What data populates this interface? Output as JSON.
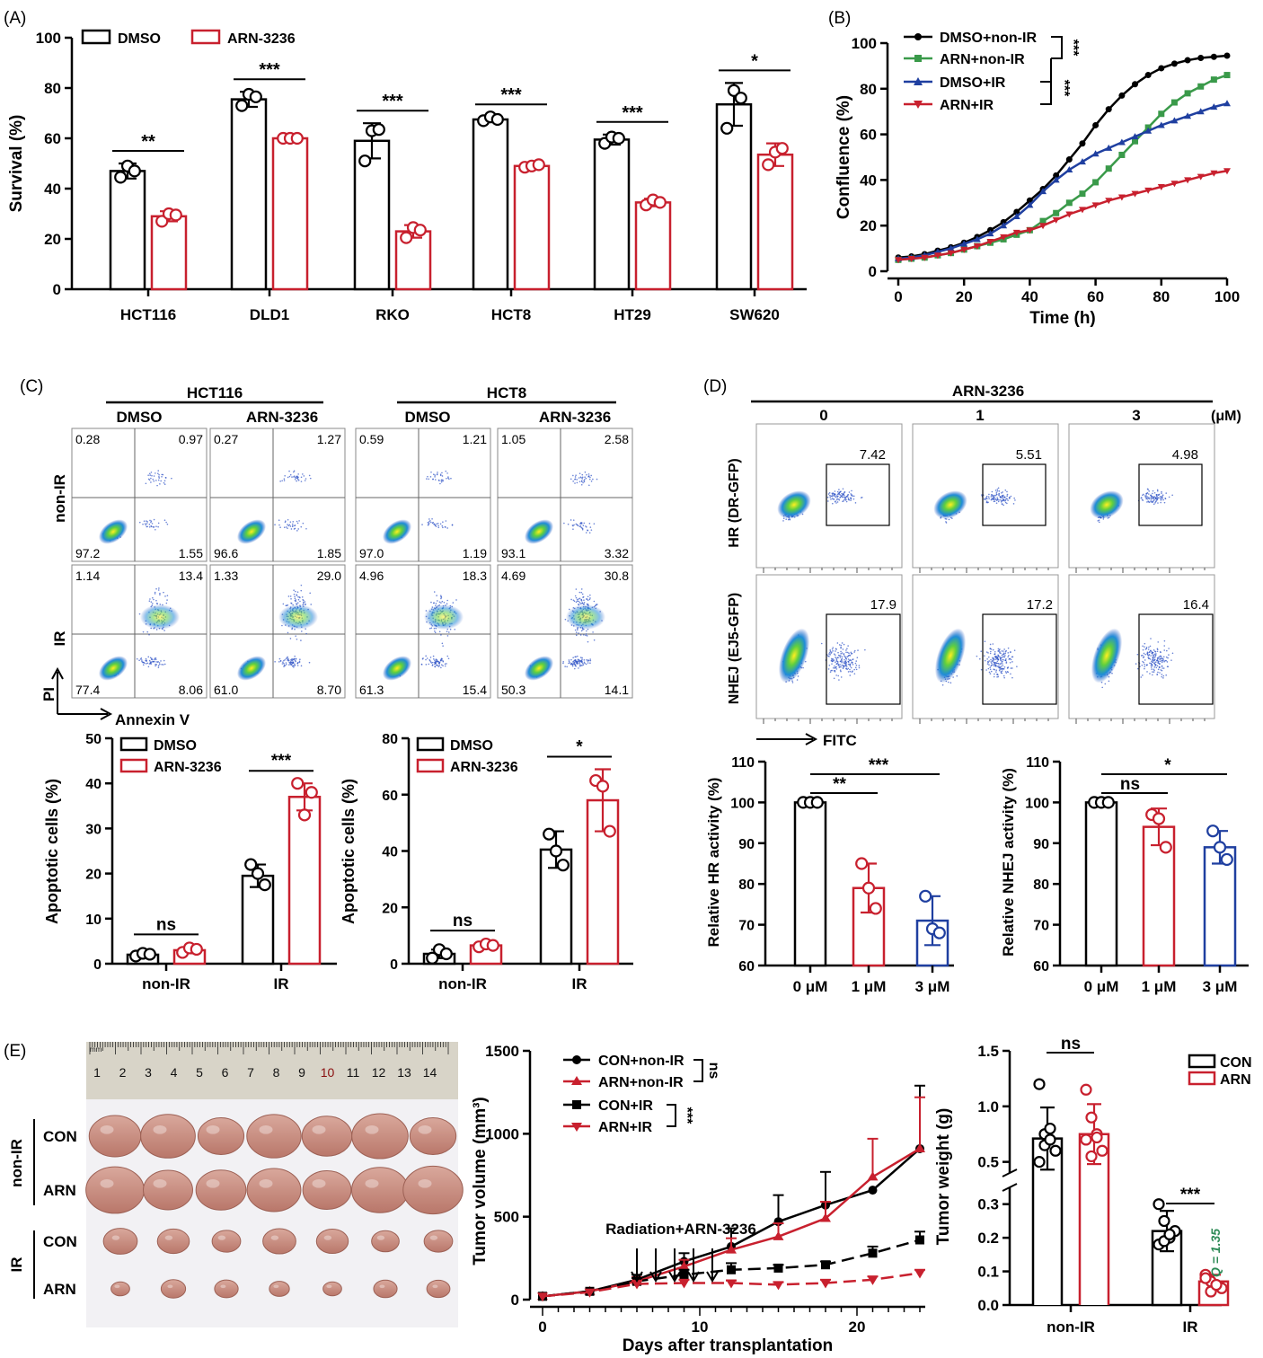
{
  "colors": {
    "dmso": "#000000",
    "arn": "#c8202e",
    "blue": "#1f3fa0",
    "green": "#3a9a4a",
    "q_green": "#2e8b57"
  },
  "panelA": {
    "label": "(A)",
    "chart_data": {
      "type": "bar",
      "ylabel": "Survival (%)",
      "ylim": [
        0,
        100
      ],
      "yticks": [
        0,
        20,
        40,
        60,
        80,
        100
      ],
      "categories": [
        "HCT116",
        "DLD1",
        "RKO",
        "HCT8",
        "HT29",
        "SW620"
      ],
      "series": [
        {
          "name": "DMSO",
          "values": [
            47,
            75.5,
            59,
            67.5,
            59.5,
            73.5
          ],
          "errors": [
            3,
            3,
            7,
            1,
            2,
            8.5
          ],
          "points": [
            [
              44.5,
              49,
              47
            ],
            [
              73,
              77.5,
              76.5
            ],
            [
              51,
              63,
              63.5
            ],
            [
              67,
              68.5,
              67.5
            ],
            [
              58,
              60.5,
              60
            ],
            [
              64,
              79,
              76
            ]
          ]
        },
        {
          "name": "ARN-3236",
          "values": [
            29,
            60,
            23,
            49,
            34.5,
            53.5
          ],
          "errors": [
            2,
            0.5,
            2.5,
            1,
            1.5,
            4.5
          ],
          "points": [
            [
              27,
              30,
              29.5
            ],
            [
              60,
              60,
              60
            ],
            [
              20.5,
              24.5,
              23.5
            ],
            [
              48.5,
              49,
              49.5
            ],
            [
              33.5,
              35.5,
              34.5
            ],
            [
              49.5,
              54.5,
              56
            ]
          ]
        }
      ],
      "sig": [
        "**",
        "***",
        "***",
        "***",
        "***",
        "*"
      ]
    }
  },
  "panelB": {
    "label": "(B)",
    "chart_data": {
      "type": "line",
      "xlabel": "Time (h)",
      "ylabel": "Confluence (%)",
      "xlim": [
        0,
        100
      ],
      "ylim": [
        0,
        100
      ],
      "xticks": [
        0,
        20,
        40,
        60,
        80,
        100
      ],
      "yticks": [
        0,
        20,
        40,
        60,
        80,
        100
      ],
      "x": [
        0,
        4,
        8,
        12,
        16,
        20,
        24,
        28,
        32,
        36,
        40,
        44,
        48,
        52,
        56,
        60,
        64,
        68,
        72,
        76,
        80,
        84,
        88,
        92,
        96,
        100
      ],
      "series": [
        {
          "name": "DMSO+non-IR",
          "values": [
            6,
            6.5,
            7.5,
            9,
            10.5,
            12.5,
            15,
            18,
            21.5,
            26,
            31,
            36,
            42,
            49,
            56,
            64,
            71,
            77,
            82,
            86,
            89,
            91,
            92.5,
            93.5,
            94,
            94.5
          ]
        },
        {
          "name": "ARN+non-IR",
          "values": [
            5,
            5.5,
            6,
            7,
            8,
            9.5,
            11,
            12.5,
            14,
            16,
            18,
            22,
            25.5,
            30,
            34,
            39,
            45,
            51,
            57,
            63,
            69,
            74,
            78,
            81,
            84,
            86
          ]
        },
        {
          "name": "DMSO+IR",
          "values": [
            5.5,
            6,
            7,
            8.5,
            10,
            12,
            14,
            16.5,
            20,
            24,
            29,
            35,
            40,
            44.5,
            48,
            51.5,
            54,
            56.5,
            59,
            61.5,
            64,
            66,
            68,
            70,
            72,
            73.5
          ]
        },
        {
          "name": "ARN+IR",
          "values": [
            5,
            5.5,
            6,
            7,
            8,
            9.5,
            11,
            13,
            15,
            17,
            18,
            20,
            22.5,
            25,
            27,
            29,
            31,
            32.5,
            34,
            35.5,
            37,
            38.5,
            40,
            41.5,
            43,
            44
          ]
        }
      ],
      "sig": [
        "***",
        "***"
      ]
    }
  },
  "panelC": {
    "label": "(C)",
    "groups": [
      "HCT116",
      "HCT8"
    ],
    "conds": [
      "DMSO",
      "ARN-3236",
      "DMSO",
      "ARN-3236"
    ],
    "rows": [
      "non-IR",
      "IR"
    ],
    "ylab": "PI",
    "xlab": "Annexin V",
    "quads": [
      [
        [
          "0.28",
          "0.97",
          "97.2",
          "1.55"
        ],
        [
          "0.27",
          "1.27",
          "96.6",
          "1.85"
        ],
        [
          "0.59",
          "1.21",
          "97.0",
          "1.19"
        ],
        [
          "1.05",
          "2.58",
          "93.1",
          "3.32"
        ]
      ],
      [
        [
          "1.14",
          "13.4",
          "77.4",
          "8.06"
        ],
        [
          "1.33",
          "29.0",
          "61.0",
          "8.70"
        ],
        [
          "4.96",
          "18.3",
          "61.3",
          "15.4"
        ],
        [
          "4.69",
          "30.8",
          "50.3",
          "14.1"
        ]
      ]
    ],
    "bars": [
      {
        "chart_data": {
          "type": "bar",
          "ylabel": "Apoptotic cells (%)",
          "ylim": [
            0,
            50
          ],
          "yticks": [
            0,
            10,
            20,
            30,
            40,
            50
          ],
          "categories": [
            "non-IR",
            "IR"
          ],
          "series": [
            {
              "name": "DMSO",
              "values": [
                2,
                19.5
              ],
              "errors": [
                0.5,
                2.5
              ],
              "points": [
                [
                  1.7,
                  2.3,
                  2.1
                ],
                [
                  22,
                  20,
                  17.5
                ]
              ]
            },
            {
              "name": "ARN-3236",
              "values": [
                3,
                37
              ],
              "errors": [
                0.7,
                3
              ],
              "points": [
                [
                  2.5,
                  3.5,
                  3.2
                ],
                [
                  40,
                  33,
                  38
                ]
              ]
            }
          ],
          "sig": [
            "ns",
            "***"
          ]
        }
      },
      {
        "chart_data": {
          "type": "bar",
          "ylabel": "Apoptotic cells (%)",
          "ylim": [
            0,
            80
          ],
          "yticks": [
            0,
            20,
            40,
            60,
            80
          ],
          "categories": [
            "non-IR",
            "IR"
          ],
          "series": [
            {
              "name": "DMSO",
              "values": [
                3.5,
                40.5
              ],
              "errors": [
                1.5,
                6.5
              ],
              "points": [
                [
                  2,
                  5,
                  3.5
                ],
                [
                  46,
                  40,
                  35
                ]
              ]
            },
            {
              "name": "ARN-3236",
              "values": [
                6.5,
                58
              ],
              "errors": [
                0.8,
                11
              ],
              "points": [
                [
                  6,
                  7,
                  6.5
                ],
                [
                  65,
                  63,
                  47
                ]
              ]
            }
          ],
          "sig": [
            "ns",
            "*"
          ]
        }
      }
    ]
  },
  "panelD": {
    "label": "(D)",
    "title": "ARN-3236",
    "doses": [
      "0",
      "1",
      "3"
    ],
    "unit": "(μM)",
    "rows": [
      "HR (DR-GFP)",
      "NHEJ (EJ5-GFP)"
    ],
    "gates": [
      [
        "7.42",
        "5.51",
        "4.98"
      ],
      [
        "17.9",
        "17.2",
        "16.4"
      ]
    ],
    "xlab": "FITC",
    "bars": [
      {
        "chart_data": {
          "type": "bar",
          "ylabel": "Relative HR activity (%)",
          "ylim": [
            60,
            110
          ],
          "yticks": [
            60,
            70,
            80,
            90,
            100,
            110
          ],
          "categories": [
            "0 μM",
            "1 μM",
            "3 μM"
          ],
          "values": [
            100,
            79,
            71
          ],
          "errors": [
            0,
            6,
            6
          ],
          "points": [
            [
              100,
              100,
              100
            ],
            [
              85,
              79,
              74
            ],
            [
              77,
              69,
              68
            ]
          ],
          "sig": [
            "**",
            "***"
          ]
        }
      },
      {
        "chart_data": {
          "type": "bar",
          "ylabel": "Relative NHEJ activity (%)",
          "ylim": [
            60,
            110
          ],
          "yticks": [
            60,
            70,
            80,
            90,
            100,
            110
          ],
          "categories": [
            "0 μM",
            "1 μM",
            "3 μM"
          ],
          "values": [
            100,
            94,
            89
          ],
          "errors": [
            0,
            4.5,
            4
          ],
          "points": [
            [
              100,
              100,
              100
            ],
            [
              97,
              96,
              89
            ],
            [
              93,
              89,
              86
            ]
          ],
          "sig": [
            "ns",
            "*"
          ]
        }
      }
    ]
  },
  "panelE": {
    "label": "(E)",
    "ruler": [
      "1",
      "2",
      "3",
      "4",
      "5",
      "6",
      "7",
      "8",
      "9",
      "10",
      "11",
      "12",
      "13",
      "14"
    ],
    "ruler_unit": "mm",
    "rows": [
      "CON",
      "ARN",
      "CON",
      "ARN"
    ],
    "groups": [
      "non-IR",
      "IR"
    ],
    "tumor": {
      "chart_data": {
        "type": "line",
        "xlabel": "Days after transplantation",
        "ylabel": "Tumor volume (mm³)",
        "xlim": [
          0,
          24
        ],
        "ylim": [
          0,
          1500
        ],
        "xticks": [
          0,
          10,
          20
        ],
        "yticks": [
          0,
          500,
          1000,
          1500
        ],
        "x": [
          0,
          3,
          6,
          9,
          12,
          15,
          18,
          21,
          24
        ],
        "series": [
          {
            "name": "CON+non-IR",
            "values": [
              20,
              50,
              120,
              230,
              320,
              470,
              570,
              660,
              910
            ],
            "errors": [
              0,
              0,
              30,
              50,
              110,
              160,
              200,
              0,
              380
            ]
          },
          {
            "name": "ARN+non-IR",
            "values": [
              20,
              50,
              110,
              200,
              300,
              380,
              490,
              740,
              910
            ],
            "errors": [
              0,
              0,
              25,
              40,
              70,
              80,
              100,
              230,
              310
            ]
          },
          {
            "name": "CON+IR",
            "values": [
              20,
              50,
              110,
              150,
              180,
              190,
              210,
              280,
              360
            ],
            "errors": [
              0,
              0,
              20,
              30,
              40,
              20,
              20,
              40,
              50
            ]
          },
          {
            "name": "ARN+IR",
            "values": [
              20,
              45,
              95,
              100,
              100,
              90,
              100,
              120,
              160
            ],
            "errors": [
              0,
              0,
              20,
              20,
              15,
              15,
              20,
              20,
              20
            ]
          }
        ],
        "annotation": "Radiation+ARN-3236",
        "sig": [
          "ns",
          "***"
        ]
      }
    },
    "weight": {
      "chart_data": {
        "type": "bar",
        "ylabel": "Tumor weight (g)",
        "yticks_top": [
          "0.5",
          "1.0",
          "1.5"
        ],
        "yticks_bottom": [
          "0.0",
          "0.1",
          "0.2",
          "0.3"
        ],
        "categories": [
          "non-IR",
          "IR"
        ],
        "series": [
          {
            "name": "CON",
            "values": [
              0.71,
              0.22
            ],
            "errors": [
              0.28,
              0.06
            ],
            "points": [
              [
                1.2,
                0.75,
                0.8,
                0.6,
                0.5,
                0.65,
                0.7
              ],
              [
                0.3,
                0.25,
                0.2,
                0.22,
                0.18,
                0.19,
                0.21
              ]
            ]
          },
          {
            "name": "ARN",
            "values": [
              0.75,
              0.07
            ],
            "errors": [
              0.27,
              0.02
            ],
            "points": [
              [
                1.15,
                0.9,
                0.75,
                0.6,
                0.7,
                0.55,
                0.72
              ],
              [
                0.09,
                0.07,
                0.06,
                0.05,
                0.08,
                0.04,
                0.06
              ]
            ]
          }
        ],
        "sig": [
          "ns",
          "***"
        ],
        "q": "Q = 1.35"
      }
    }
  }
}
